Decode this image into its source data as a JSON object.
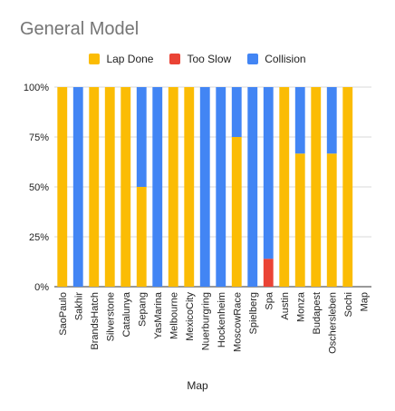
{
  "chart_data": {
    "type": "bar",
    "stacked": true,
    "percent": true,
    "title": "General Model",
    "xlabel": "Map",
    "ylabel": "",
    "ylim": [
      0,
      100
    ],
    "y_ticks": [
      "0%",
      "25%",
      "50%",
      "75%",
      "100%"
    ],
    "grid": true,
    "legend_position": "top",
    "categories": [
      "SaoPaulo",
      "Sakhir",
      "BrandsHatch",
      "Silverstone",
      "Catalunya",
      "Sepang",
      "YasMarina",
      "Melbourne",
      "MexicoCity",
      "Nuerburgring",
      "Hockenheim",
      "MoscowRace",
      "Spielberg",
      "Spa",
      "Austin",
      "Monza",
      "Budapest",
      "Oschersleben",
      "Sochi",
      "Map"
    ],
    "series": [
      {
        "name": "Lap Done",
        "color": "#FBBC04",
        "values": [
          100,
          0,
          100,
          100,
          100,
          50,
          0,
          100,
          100,
          0,
          0,
          75,
          0,
          0,
          100,
          66.7,
          100,
          66.7,
          100,
          0
        ]
      },
      {
        "name": "Too Slow",
        "color": "#EA4335",
        "values": [
          0,
          0,
          0,
          0,
          0,
          0,
          0,
          0,
          0,
          0,
          0,
          0,
          0,
          14,
          0,
          0,
          0,
          0,
          0,
          0
        ]
      },
      {
        "name": "Collision",
        "color": "#4285F4",
        "values": [
          0,
          100,
          0,
          0,
          0,
          50,
          100,
          0,
          0,
          100,
          100,
          25,
          100,
          86,
          0,
          33.3,
          0,
          33.3,
          0,
          0
        ]
      }
    ]
  }
}
